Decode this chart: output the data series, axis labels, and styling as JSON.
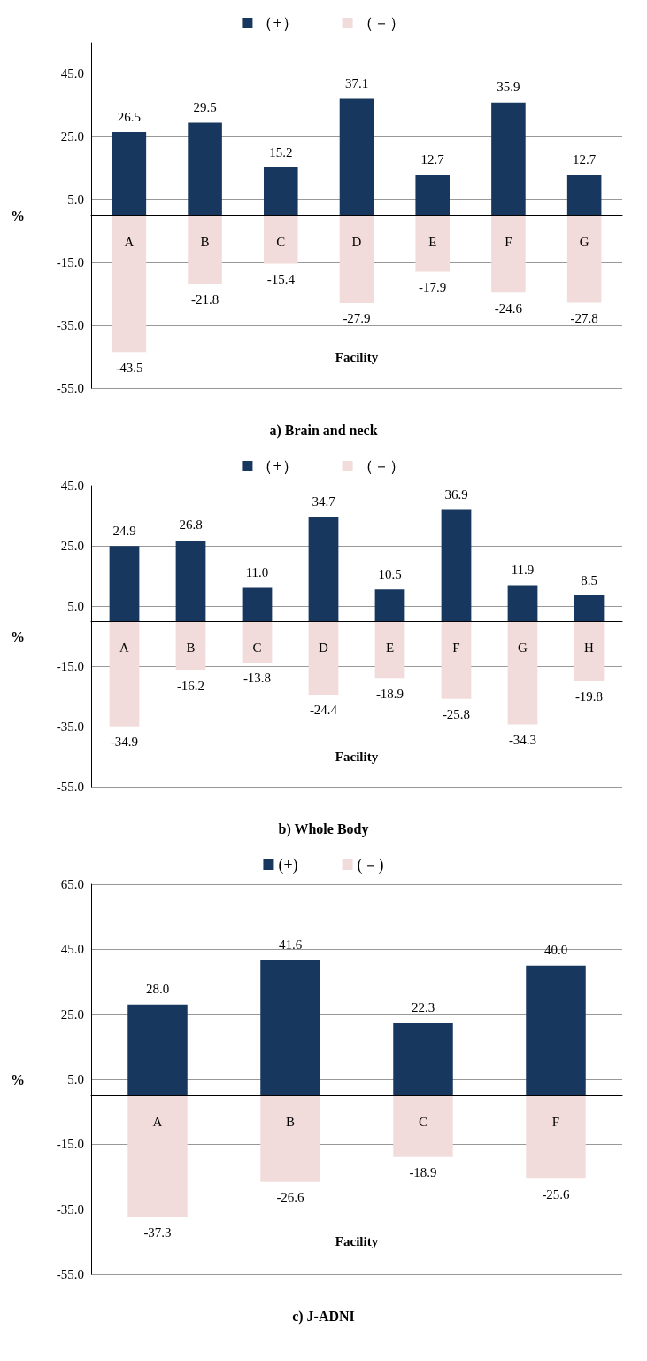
{
  "chart_data": [
    {
      "type": "bar",
      "title": "a) Brain and neck",
      "xlabel": "Facility",
      "ylabel": "%",
      "categories": [
        "A",
        "B",
        "C",
        "D",
        "E",
        "F",
        "G"
      ],
      "stacked": true,
      "legend": "top",
      "grid": "y",
      "ylim": [
        -55,
        55
      ],
      "yticks": [
        {
          "value": -55,
          "label": "-55.0"
        },
        {
          "value": -35,
          "label": "-35.0"
        },
        {
          "value": -15,
          "label": "-15.0"
        },
        {
          "value": 5,
          "label": "5.0"
        },
        {
          "value": 25,
          "label": "25.0"
        },
        {
          "value": 45,
          "label": "45.0"
        }
      ],
      "series": [
        {
          "name": "（+）",
          "color": "#17375e",
          "values": [
            26.5,
            29.5,
            15.2,
            37.1,
            12.7,
            35.9,
            12.7
          ],
          "value_labels": [
            "26.5",
            "29.5",
            "15.2",
            "37.1",
            "12.7",
            "35.9",
            "12.7"
          ]
        },
        {
          "name": "（－）",
          "color": "#f2dcdb",
          "values": [
            -43.5,
            -21.8,
            -15.4,
            -27.9,
            -17.9,
            -24.6,
            -27.8
          ],
          "value_labels": [
            "-43.5",
            "-21.8",
            "-15.4",
            "-27.9",
            "-17.9",
            "-24.6",
            "-27.8"
          ]
        }
      ]
    },
    {
      "type": "bar",
      "title": "b) Whole Body",
      "xlabel": "Facility",
      "ylabel": "%",
      "categories": [
        "A",
        "B",
        "C",
        "D",
        "E",
        "F",
        "G",
        "H"
      ],
      "stacked": true,
      "legend": "top",
      "grid": "y",
      "ylim": [
        -55,
        45
      ],
      "yticks": [
        {
          "value": -55,
          "label": "-55.0"
        },
        {
          "value": -35,
          "label": "-35.0"
        },
        {
          "value": -15,
          "label": "-15.0"
        },
        {
          "value": 5,
          "label": "5.0"
        },
        {
          "value": 25,
          "label": "25.0"
        },
        {
          "value": 45,
          "label": "45.0"
        }
      ],
      "series": [
        {
          "name": "（+）",
          "color": "#17375e",
          "values": [
            24.9,
            26.8,
            11.0,
            34.7,
            10.5,
            36.9,
            11.9,
            8.5
          ],
          "value_labels": [
            "24.9",
            "26.8",
            "11.0",
            "34.7",
            "10.5",
            "36.9",
            "11.9",
            "8.5"
          ]
        },
        {
          "name": "（－）",
          "color": "#f2dcdb",
          "values": [
            -34.9,
            -16.2,
            -13.8,
            -24.4,
            -18.9,
            -25.8,
            -34.3,
            -19.8
          ],
          "value_labels": [
            "-34.9",
            "-16.2",
            "-13.8",
            "-24.4",
            "-18.9",
            "-25.8",
            "-34.3",
            "-19.8"
          ]
        }
      ]
    },
    {
      "type": "bar",
      "title": "c) J-ADNI",
      "xlabel": "Facility",
      "ylabel": "%",
      "categories": [
        "A",
        "B",
        "C",
        "F"
      ],
      "stacked": true,
      "legend": "top",
      "grid": "y",
      "ylim": [
        -55,
        65
      ],
      "yticks": [
        {
          "value": -55,
          "label": "-55.0"
        },
        {
          "value": -35,
          "label": "-35.0"
        },
        {
          "value": -15,
          "label": "-15.0"
        },
        {
          "value": 5,
          "label": "5.0"
        },
        {
          "value": 25,
          "label": "25.0"
        },
        {
          "value": 45,
          "label": "45.0"
        },
        {
          "value": 65,
          "label": "65.0"
        }
      ],
      "series": [
        {
          "name": "(+)",
          "color": "#17375e",
          "values": [
            28.0,
            41.6,
            22.3,
            40.0
          ],
          "value_labels": [
            "28.0",
            "41.6",
            "22.3",
            "40.0"
          ]
        },
        {
          "name": "(－)",
          "color": "#f2dcdb",
          "values": [
            -37.3,
            -26.6,
            -18.9,
            -25.6
          ],
          "value_labels": [
            "-37.3",
            "-26.6",
            "-18.9",
            "-25.6"
          ]
        }
      ]
    }
  ]
}
